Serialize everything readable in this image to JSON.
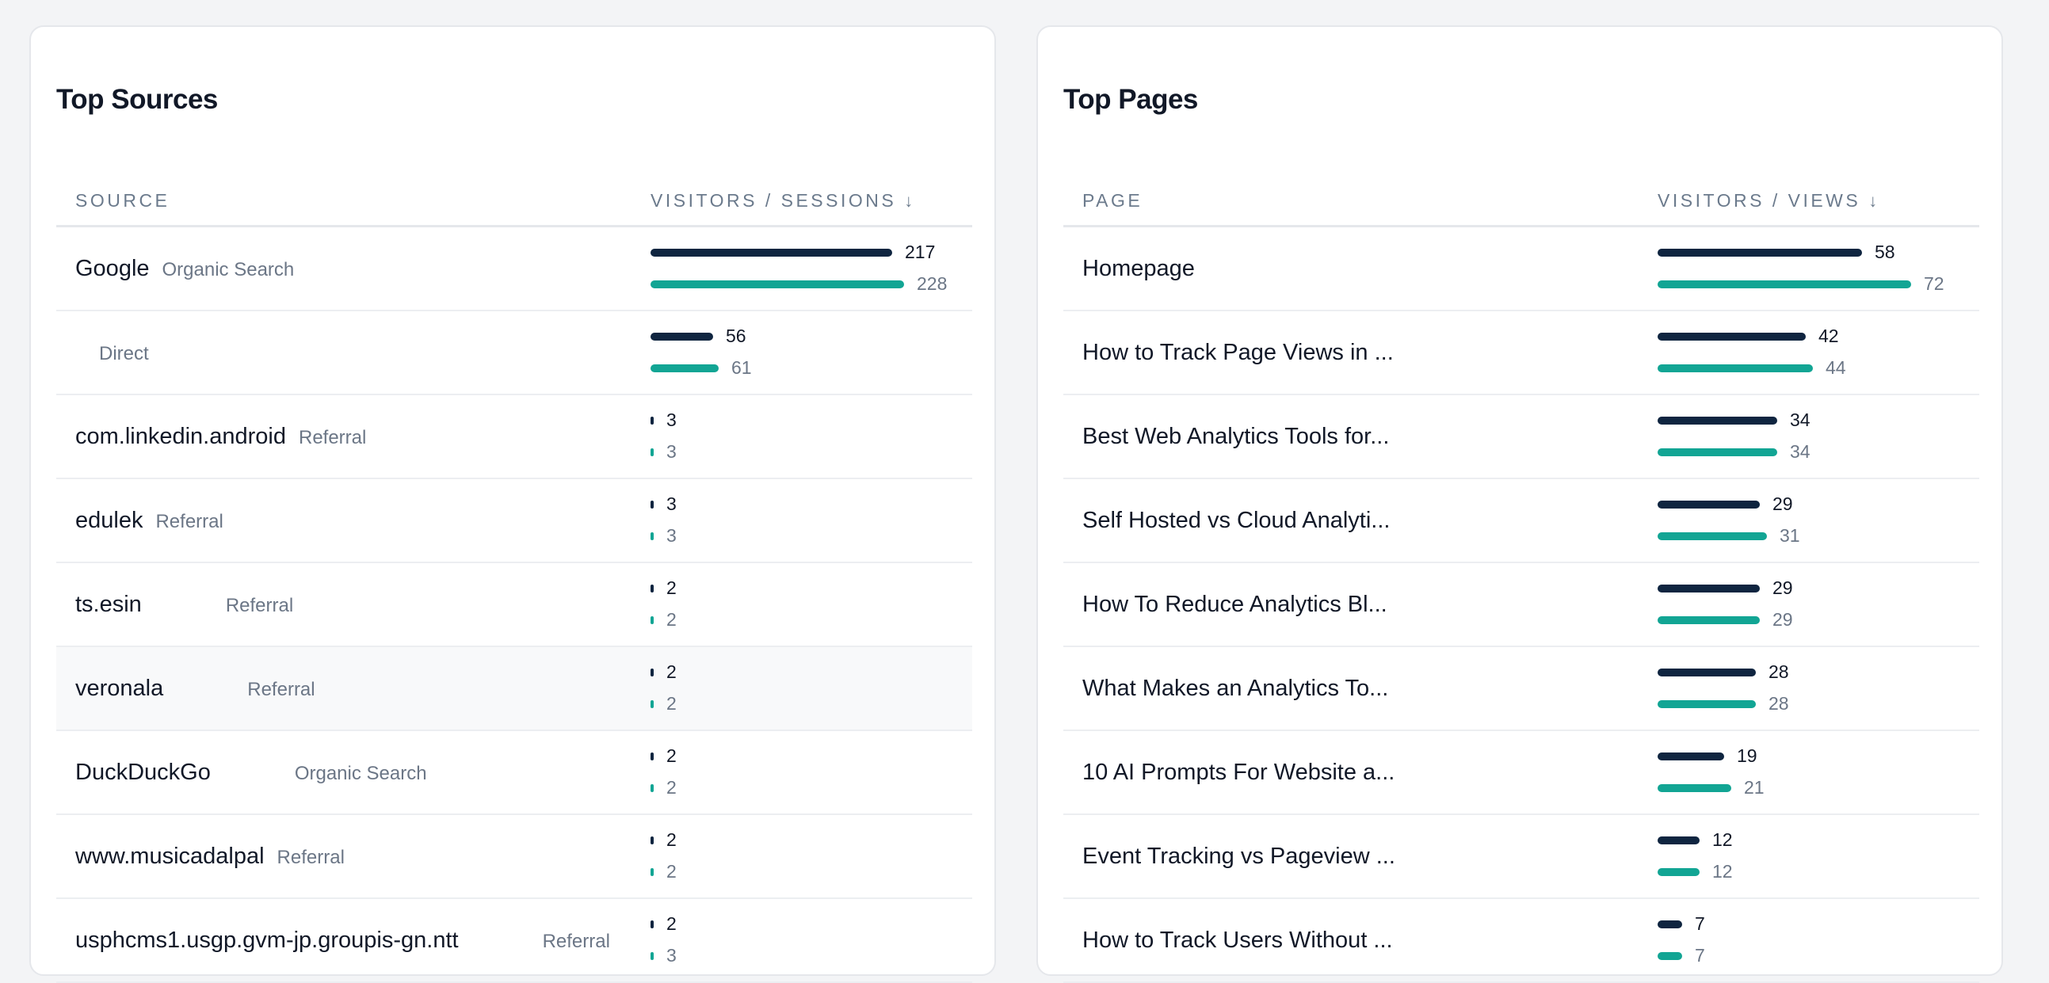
{
  "colors": {
    "visitors_bar": "#0f2540",
    "secondary_bar": "#12a594"
  },
  "sources": {
    "title": "Top Sources",
    "col_label": "SOURCE",
    "col_metric": "VISITORS / SESSIONS",
    "sort_icon": "↓",
    "max": 228,
    "rows": [
      {
        "name": "Google",
        "type": "Organic Search",
        "visitors": 217,
        "sessions": 228
      },
      {
        "name": "",
        "type": "Direct",
        "visitors": 56,
        "sessions": 61
      },
      {
        "name": "com.linkedin.android",
        "type": "Referral",
        "visitors": 3,
        "sessions": 3
      },
      {
        "name": "edulek",
        "type": "Referral",
        "visitors": 3,
        "sessions": 3
      },
      {
        "name": "ts.esin",
        "type": "Referral",
        "visitors": 2,
        "sessions": 2
      },
      {
        "name": "veronala",
        "type": "Referral",
        "visitors": 2,
        "sessions": 2
      },
      {
        "name": "DuckDuckGo",
        "type": "Organic Search",
        "visitors": 2,
        "sessions": 2
      },
      {
        "name": "www.musicadalpal",
        "type": "Referral",
        "visitors": 2,
        "sessions": 2
      },
      {
        "name": "usphcms1.usgp.gvm-jp.groupis-gn.ntt",
        "type": "Referral",
        "visitors": 2,
        "sessions": 3
      }
    ]
  },
  "pages": {
    "title": "Top Pages",
    "col_label": "PAGE",
    "col_metric": "VISITORS / VIEWS",
    "sort_icon": "↓",
    "max": 72,
    "rows": [
      {
        "name": "Homepage",
        "visitors": 58,
        "views": 72
      },
      {
        "name": "How to Track Page Views in ...",
        "visitors": 42,
        "views": 44
      },
      {
        "name": "Best Web Analytics Tools for...",
        "visitors": 34,
        "views": 34
      },
      {
        "name": "Self Hosted vs Cloud Analyti...",
        "visitors": 29,
        "views": 31
      },
      {
        "name": "How To Reduce Analytics Bl...",
        "visitors": 29,
        "views": 29
      },
      {
        "name": "What Makes an Analytics To...",
        "visitors": 28,
        "views": 28
      },
      {
        "name": "10 AI Prompts For Website a...",
        "visitors": 19,
        "views": 21
      },
      {
        "name": "Event Tracking vs Pageview ...",
        "visitors": 12,
        "views": 12
      },
      {
        "name": "How to Track Users Without ...",
        "visitors": 7,
        "views": 7
      }
    ]
  }
}
